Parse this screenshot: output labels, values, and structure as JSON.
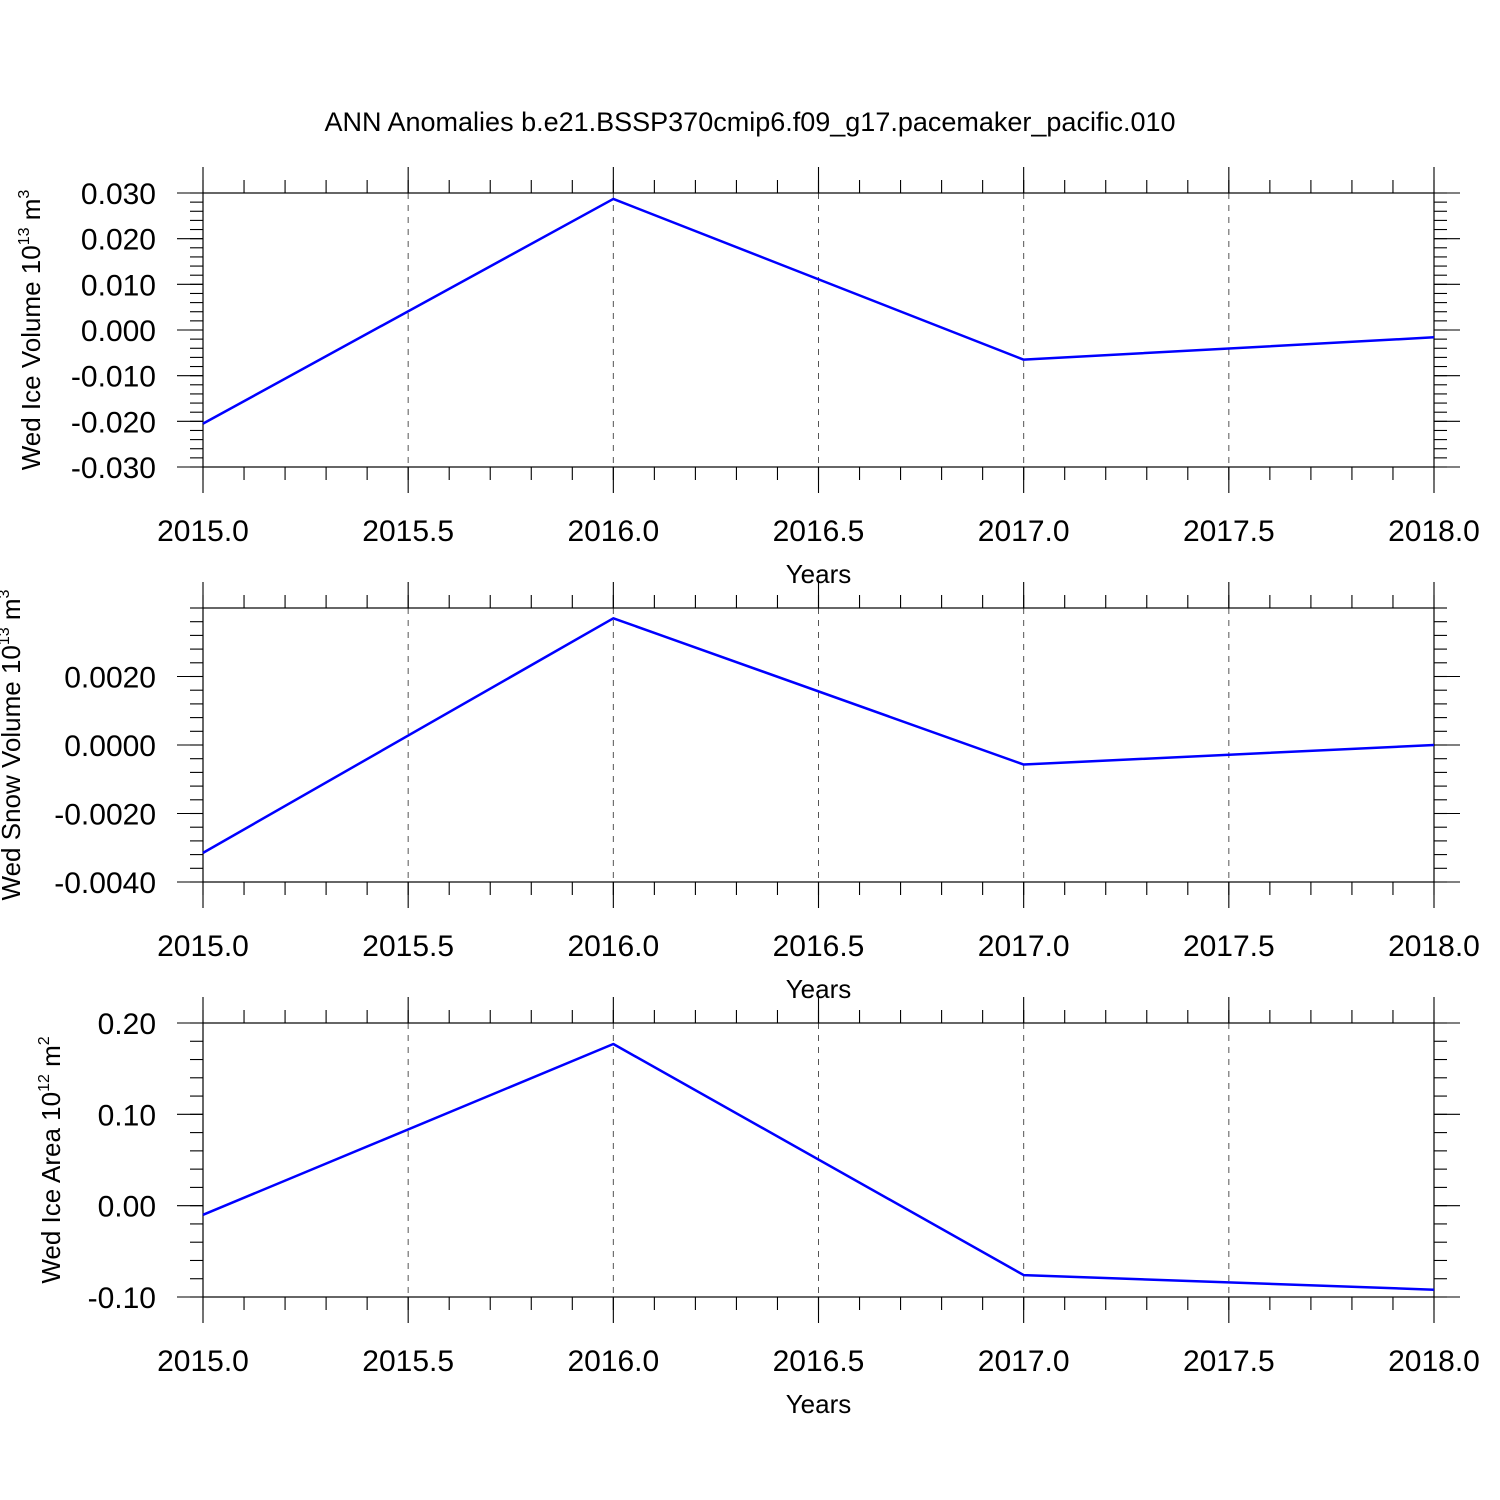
{
  "title": "ANN Anomalies b.e21.BSSP370cmip6.f09_g17.pacemaker_pacific.010",
  "colors": {
    "series": "#0000ff"
  },
  "chart_data": [
    {
      "type": "line",
      "xlabel": "Years",
      "ylabel": "Wed Ice Volume 10",
      "ylabel_exp": "13",
      "ylabel_unit": " m",
      "ylabel_unit_exp": "3",
      "xlim": [
        2015.0,
        2018.0
      ],
      "ylim": [
        -0.03,
        0.03
      ],
      "x_ticks": [
        "2015.0",
        "2015.5",
        "2016.0",
        "2016.5",
        "2017.0",
        "2017.5",
        "2018.0"
      ],
      "y_ticks": [
        "0.030",
        "0.020",
        "0.010",
        "0.000",
        "-0.010",
        "-0.020",
        "-0.030"
      ],
      "grid": "vertical dashed",
      "series": [
        {
          "x": [
            2015,
            2016,
            2017,
            2018
          ],
          "values": [
            -0.0205,
            0.0287,
            -0.0065,
            -0.0016
          ]
        }
      ]
    },
    {
      "type": "line",
      "xlabel": "Years",
      "ylabel": "Wed Snow Volume 10",
      "ylabel_exp": "13",
      "ylabel_unit": " m",
      "ylabel_unit_exp": "3",
      "xlim": [
        2015.0,
        2018.0
      ],
      "ylim": [
        -0.004,
        0.004
      ],
      "x_ticks": [
        "2015.0",
        "2015.5",
        "2016.0",
        "2016.5",
        "2017.0",
        "2017.5",
        "2018.0"
      ],
      "y_ticks": [
        "0.0020",
        "0.0000",
        "-0.0020",
        "-0.0040"
      ],
      "grid": "vertical dashed",
      "series": [
        {
          "x": [
            2015,
            2016,
            2017,
            2018
          ],
          "values": [
            -0.00315,
            0.0037,
            -0.00057,
            0.0
          ]
        }
      ]
    },
    {
      "type": "line",
      "xlabel": "Years",
      "ylabel": "Wed Ice Area 10",
      "ylabel_exp": "12",
      "ylabel_unit": " m",
      "ylabel_unit_exp": "2",
      "xlim": [
        2015.0,
        2018.0
      ],
      "ylim": [
        -0.1,
        0.2
      ],
      "x_ticks": [
        "2015.0",
        "2015.5",
        "2016.0",
        "2016.5",
        "2017.0",
        "2017.5",
        "2018.0"
      ],
      "y_ticks": [
        "0.20",
        "0.10",
        "0.00",
        "-0.10"
      ],
      "grid": "vertical dashed",
      "series": [
        {
          "x": [
            2015,
            2016,
            2017,
            2018
          ],
          "values": [
            -0.01,
            0.177,
            -0.076,
            -0.092
          ]
        }
      ]
    }
  ]
}
